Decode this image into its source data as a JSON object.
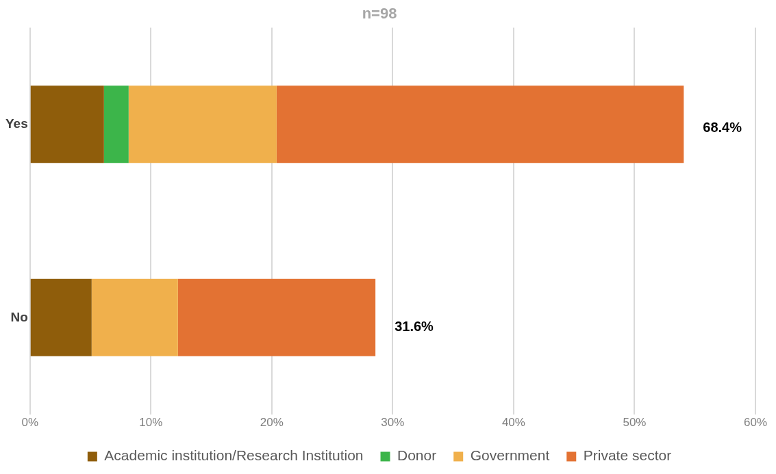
{
  "chart_data": {
    "type": "bar",
    "orientation": "horizontal",
    "stacked": true,
    "title": "n=98",
    "categories": [
      "Yes",
      "No"
    ],
    "series": [
      {
        "name": "Academic institution/Research Institution",
        "color": "#8f5d0b",
        "values": [
          6.12,
          5.1
        ]
      },
      {
        "name": "Donor",
        "color": "#3cb54a",
        "values": [
          2.04,
          0
        ]
      },
      {
        "name": "Government",
        "color": "#f0b04c",
        "values": [
          12.24,
          7.14
        ]
      },
      {
        "name": "Private sector",
        "color": "#e37233",
        "values": [
          33.67,
          16.33
        ]
      }
    ],
    "xlim": [
      0,
      60
    ],
    "xticks": [
      {
        "value": 0,
        "label": "0%"
      },
      {
        "value": 10,
        "label": "10%"
      },
      {
        "value": 20,
        "label": "20%"
      },
      {
        "value": 30,
        "label": "30%"
      },
      {
        "value": 40,
        "label": "40%"
      },
      {
        "value": 50,
        "label": "50%"
      },
      {
        "value": 60,
        "label": "60%"
      }
    ],
    "annotations": [
      {
        "text": "68.4%",
        "x": 54.07,
        "y": "Yes"
      },
      {
        "text": "31.6%",
        "x": 28.57,
        "y": "No"
      }
    ],
    "grid": "x",
    "legend": "bottom"
  }
}
